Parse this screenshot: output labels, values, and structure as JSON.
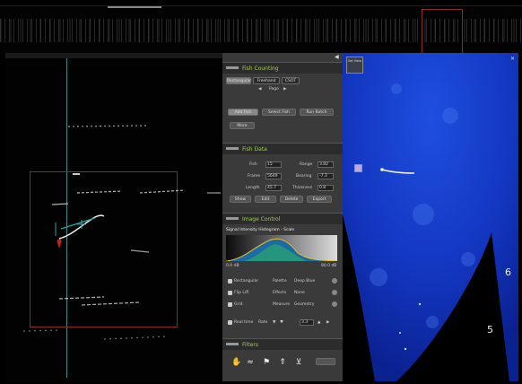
{
  "fish_counting": {
    "title": "Fish Counting",
    "tabs": [
      "Rectangular",
      "Freehand",
      "CSOT"
    ],
    "page_label": "Page",
    "buttons": [
      "Add Fish",
      "Select Fish",
      "Run Batch"
    ],
    "more": "More"
  },
  "fish_data": {
    "title": "Fish Data",
    "fields": [
      {
        "label": "Fish",
        "value": "15"
      },
      {
        "label": "Range",
        "value": "3.82"
      },
      {
        "label": "Frame",
        "value": "5649"
      },
      {
        "label": "Bearing",
        "value": "-7.3"
      },
      {
        "label": "Length",
        "value": "45.7"
      },
      {
        "label": "Thickness",
        "value": "0.8"
      }
    ],
    "actions": [
      "Show",
      "Edit",
      "Delete",
      "Export"
    ]
  },
  "image_control": {
    "title": "Image Control",
    "histogram_label": "Signal Intensity Histogram - Scale",
    "hist_min": "0.0 dB",
    "hist_max": "80.0 dB",
    "rows": [
      {
        "check": "Rectangular",
        "label": "Palette",
        "value": "Deep Blue"
      },
      {
        "check": "Flip L/R",
        "label": "Effects",
        "value": "None"
      },
      {
        "check": "Grid",
        "label": "Measure",
        "value": "Geometry"
      }
    ],
    "realtime": {
      "label": "Real time",
      "rate_label": "Rate",
      "rate_value": "3.3"
    }
  },
  "filters": {
    "title": "Filters",
    "tool_icons": [
      "hand-icon",
      "wave-icon",
      "fish-icon",
      "arrow-icon",
      "filter-icon"
    ]
  },
  "sonar": {
    "control_label": "Set View",
    "range_marks": [
      {
        "label": "6"
      },
      {
        "label": "5"
      }
    ],
    "colors": {
      "beam": "#1238c8",
      "background": "#000000"
    }
  }
}
